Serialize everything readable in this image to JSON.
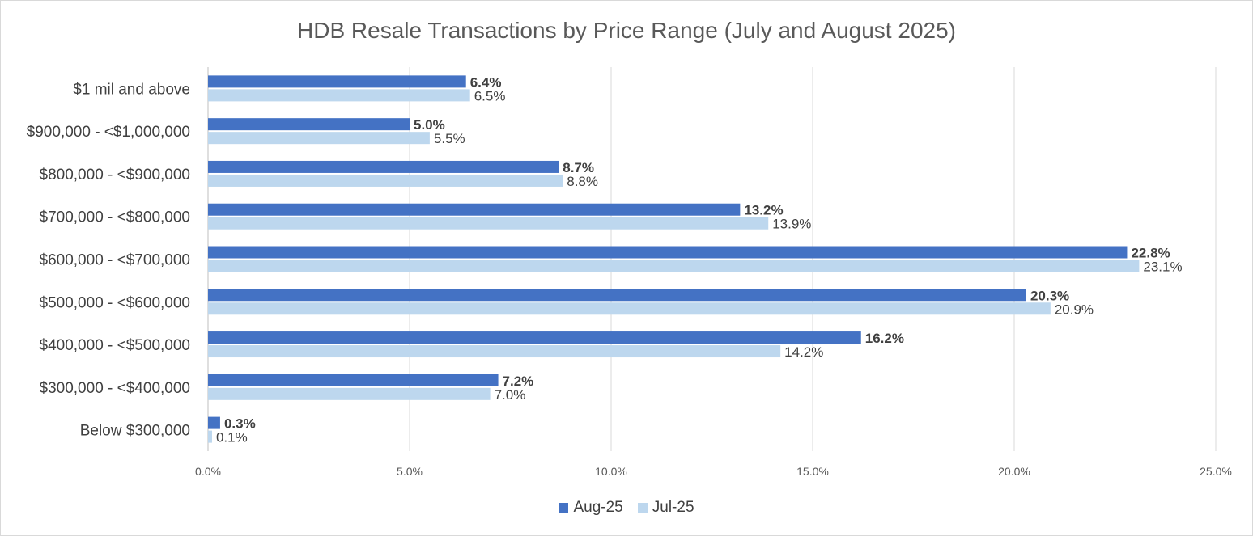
{
  "chart_data": {
    "type": "bar",
    "orientation": "horizontal",
    "title": "HDB Resale Transactions by Price Range (July and August 2025)",
    "categories": [
      "$1 mil and above",
      "$900,000 - <$1,000,000",
      "$800,000 - <$900,000",
      "$700,000 - <$800,000",
      "$600,000 - <$700,000",
      "$500,000 - <$600,000",
      "$400,000 - <$500,000",
      "$300,000 - <$400,000",
      "Below $300,000"
    ],
    "series": [
      {
        "name": "Aug-25",
        "color": "#4472c4",
        "values": [
          6.4,
          5.0,
          8.7,
          13.2,
          22.8,
          20.3,
          16.2,
          7.2,
          0.3
        ],
        "labels": [
          "6.4%",
          "5.0%",
          "8.7%",
          "13.2%",
          "22.8%",
          "20.3%",
          "16.2%",
          "7.2%",
          "0.3%"
        ]
      },
      {
        "name": "Jul-25",
        "color": "#bdd7ee",
        "values": [
          6.5,
          5.5,
          8.8,
          13.9,
          23.1,
          20.9,
          14.2,
          7.0,
          0.1
        ],
        "labels": [
          "6.5%",
          "5.5%",
          "8.8%",
          "13.9%",
          "23.1%",
          "20.9%",
          "14.2%",
          "7.0%",
          "0.1%"
        ]
      }
    ],
    "xlim": [
      0,
      25
    ],
    "xticks": [
      0,
      5,
      10,
      15,
      20,
      25
    ],
    "xtick_labels": [
      "0.0%",
      "5.0%",
      "10.0%",
      "15.0%",
      "20.0%",
      "25.0%"
    ],
    "grid": true,
    "legend_position": "bottom"
  }
}
